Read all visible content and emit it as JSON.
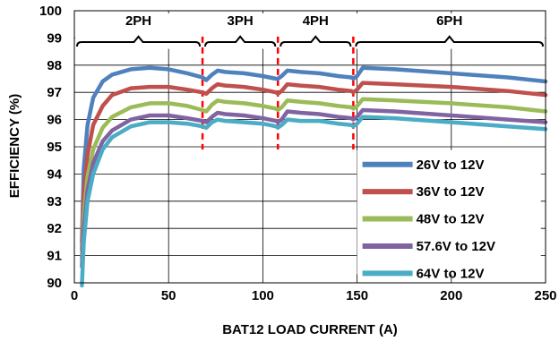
{
  "chart_data": {
    "type": "line",
    "title": "",
    "xlabel": "BAT12 LOAD CURRENT (A)",
    "ylabel": "EFFICIENCY (%)",
    "xlim": [
      0,
      250
    ],
    "ylim": [
      90,
      100
    ],
    "x_ticks": [
      0,
      50,
      100,
      150,
      200,
      250
    ],
    "y_ticks": [
      90,
      91,
      92,
      93,
      94,
      95,
      96,
      97,
      98,
      99,
      100
    ],
    "grid": true,
    "legend_position": "bottom-right",
    "phase_regions": [
      {
        "label": "2PH",
        "x_start": 0,
        "x_end": 68
      },
      {
        "label": "3PH",
        "x_start": 68,
        "x_end": 108
      },
      {
        "label": "4PH",
        "x_start": 108,
        "x_end": 148
      },
      {
        "label": "6PH",
        "x_start": 148,
        "x_end": 250
      }
    ],
    "phase_boundaries": [
      68,
      108,
      148
    ],
    "series": [
      {
        "name": "26V to 12V",
        "color": "#4F81BD",
        "points": [
          [
            4,
            91.5
          ],
          [
            5,
            94.2
          ],
          [
            7,
            95.8
          ],
          [
            10,
            96.8
          ],
          [
            15,
            97.4
          ],
          [
            20,
            97.65
          ],
          [
            30,
            97.85
          ],
          [
            40,
            97.9
          ],
          [
            50,
            97.85
          ],
          [
            60,
            97.7
          ],
          [
            68,
            97.55
          ],
          [
            70,
            97.45
          ],
          [
            73,
            97.65
          ],
          [
            76,
            97.8
          ],
          [
            80,
            97.75
          ],
          [
            90,
            97.7
          ],
          [
            100,
            97.6
          ],
          [
            107,
            97.5
          ],
          [
            108,
            97.5
          ],
          [
            110,
            97.6
          ],
          [
            113,
            97.8
          ],
          [
            120,
            97.75
          ],
          [
            130,
            97.7
          ],
          [
            140,
            97.6
          ],
          [
            147,
            97.55
          ],
          [
            148,
            97.5
          ],
          [
            150,
            97.6
          ],
          [
            153,
            97.9
          ],
          [
            170,
            97.85
          ],
          [
            200,
            97.7
          ],
          [
            230,
            97.55
          ],
          [
            250,
            97.4
          ]
        ]
      },
      {
        "name": "36V to 12V",
        "color": "#C0504D",
        "points": [
          [
            4,
            91.2
          ],
          [
            5,
            93.3
          ],
          [
            7,
            94.7
          ],
          [
            10,
            95.8
          ],
          [
            15,
            96.5
          ],
          [
            20,
            96.9
          ],
          [
            30,
            97.15
          ],
          [
            40,
            97.2
          ],
          [
            50,
            97.2
          ],
          [
            60,
            97.1
          ],
          [
            68,
            97.0
          ],
          [
            70,
            96.95
          ],
          [
            73,
            97.15
          ],
          [
            76,
            97.3
          ],
          [
            80,
            97.25
          ],
          [
            90,
            97.2
          ],
          [
            100,
            97.1
          ],
          [
            107,
            97.0
          ],
          [
            108,
            96.95
          ],
          [
            110,
            97.05
          ],
          [
            113,
            97.3
          ],
          [
            120,
            97.25
          ],
          [
            130,
            97.2
          ],
          [
            140,
            97.1
          ],
          [
            147,
            97.05
          ],
          [
            148,
            97.0
          ],
          [
            150,
            97.1
          ],
          [
            153,
            97.35
          ],
          [
            170,
            97.3
          ],
          [
            200,
            97.2
          ],
          [
            230,
            97.05
          ],
          [
            250,
            96.9
          ]
        ]
      },
      {
        "name": "48V to 12V",
        "color": "#9BBB59",
        "points": [
          [
            4,
            90.9
          ],
          [
            5,
            92.5
          ],
          [
            7,
            93.9
          ],
          [
            10,
            94.9
          ],
          [
            15,
            95.7
          ],
          [
            20,
            96.1
          ],
          [
            30,
            96.45
          ],
          [
            40,
            96.6
          ],
          [
            50,
            96.6
          ],
          [
            60,
            96.5
          ],
          [
            68,
            96.35
          ],
          [
            70,
            96.3
          ],
          [
            73,
            96.55
          ],
          [
            76,
            96.7
          ],
          [
            80,
            96.65
          ],
          [
            90,
            96.6
          ],
          [
            100,
            96.5
          ],
          [
            107,
            96.4
          ],
          [
            108,
            96.35
          ],
          [
            110,
            96.45
          ],
          [
            113,
            96.7
          ],
          [
            120,
            96.65
          ],
          [
            130,
            96.6
          ],
          [
            140,
            96.5
          ],
          [
            147,
            96.45
          ],
          [
            148,
            96.4
          ],
          [
            150,
            96.5
          ],
          [
            153,
            96.75
          ],
          [
            170,
            96.7
          ],
          [
            200,
            96.6
          ],
          [
            230,
            96.45
          ],
          [
            250,
            96.3
          ]
        ]
      },
      {
        "name": "57.6V to 12V",
        "color": "#8064A2",
        "points": [
          [
            4,
            90.6
          ],
          [
            5,
            92.0
          ],
          [
            7,
            93.4
          ],
          [
            10,
            94.4
          ],
          [
            15,
            95.2
          ],
          [
            20,
            95.6
          ],
          [
            30,
            96.0
          ],
          [
            40,
            96.15
          ],
          [
            50,
            96.15
          ],
          [
            60,
            96.05
          ],
          [
            68,
            95.95
          ],
          [
            70,
            95.9
          ],
          [
            73,
            96.1
          ],
          [
            76,
            96.25
          ],
          [
            80,
            96.2
          ],
          [
            90,
            96.15
          ],
          [
            100,
            96.05
          ],
          [
            107,
            95.95
          ],
          [
            108,
            95.9
          ],
          [
            110,
            96.0
          ],
          [
            113,
            96.3
          ],
          [
            120,
            96.25
          ],
          [
            130,
            96.2
          ],
          [
            140,
            96.1
          ],
          [
            147,
            96.05
          ],
          [
            148,
            96.0
          ],
          [
            150,
            96.1
          ],
          [
            153,
            96.35
          ],
          [
            170,
            96.3
          ],
          [
            200,
            96.15
          ],
          [
            230,
            96.0
          ],
          [
            250,
            95.9
          ]
        ]
      },
      {
        "name": "64V to 12V",
        "color": "#4BACC6",
        "points": [
          [
            4,
            89.9
          ],
          [
            5,
            91.5
          ],
          [
            7,
            93.0
          ],
          [
            10,
            94.0
          ],
          [
            15,
            94.9
          ],
          [
            20,
            95.35
          ],
          [
            30,
            95.75
          ],
          [
            40,
            95.9
          ],
          [
            50,
            95.9
          ],
          [
            60,
            95.85
          ],
          [
            68,
            95.75
          ],
          [
            70,
            95.7
          ],
          [
            73,
            95.9
          ],
          [
            76,
            96.0
          ],
          [
            80,
            95.95
          ],
          [
            90,
            95.9
          ],
          [
            100,
            95.85
          ],
          [
            107,
            95.75
          ],
          [
            108,
            95.7
          ],
          [
            110,
            95.8
          ],
          [
            113,
            96.0
          ],
          [
            120,
            95.95
          ],
          [
            130,
            95.95
          ],
          [
            140,
            95.85
          ],
          [
            147,
            95.8
          ],
          [
            148,
            95.75
          ],
          [
            150,
            95.85
          ],
          [
            153,
            96.1
          ],
          [
            170,
            96.05
          ],
          [
            200,
            95.9
          ],
          [
            230,
            95.75
          ],
          [
            250,
            95.65
          ]
        ]
      }
    ]
  }
}
